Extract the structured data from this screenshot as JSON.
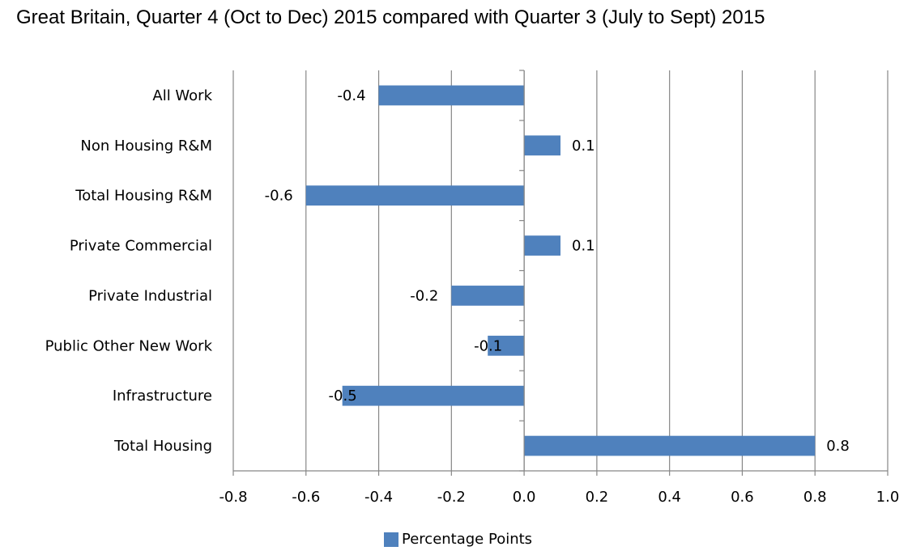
{
  "title": "Great Britain, Quarter 4 (Oct to Dec) 2015 compared with Quarter 3 (July to Sept) 2015",
  "colors": {
    "bar": "#4F81BD",
    "grid": "#868686"
  },
  "chart_data": {
    "type": "bar",
    "orientation": "horizontal",
    "categories": [
      "All Work",
      "Non Housing R&M",
      "Total Housing R&M",
      "Private Commercial",
      "Private Industrial",
      "Public Other New Work",
      "Infrastructure",
      "Total Housing"
    ],
    "series": [
      {
        "name": "Percentage Points",
        "values": [
          -0.4,
          0.1,
          -0.6,
          0.1,
          -0.2,
          -0.1,
          -0.5,
          0.8
        ]
      }
    ],
    "data_labels": [
      "-0.4",
      "0.1",
      "-0.6",
      "0.1",
      "-0.2",
      "-0.1",
      "-0.5",
      "0.8"
    ],
    "xlim": [
      -0.8,
      1.0
    ],
    "xticks": [
      "-0.8",
      "-0.6",
      "-0.4",
      "-0.2",
      "0.0",
      "0.2",
      "0.4",
      "0.6",
      "0.8",
      "1.0"
    ],
    "grid": "vertical",
    "legend_position": "bottom"
  }
}
